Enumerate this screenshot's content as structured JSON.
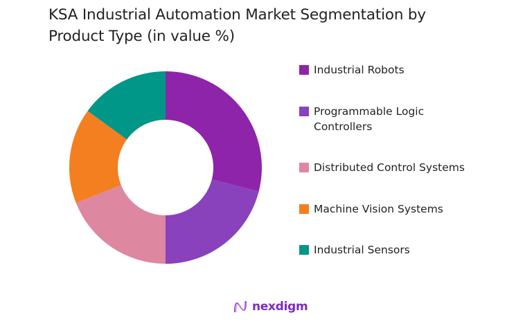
{
  "title": "KSA Industrial Automation Market Segmentation by Product Type (in value %)",
  "chart_data": {
    "type": "pie",
    "subtype": "donut",
    "title": "KSA Industrial Automation Market Segmentation by Product Type (in value %)",
    "categories": [
      "Industrial Robots",
      "Programmable Logic Controllers",
      "Distributed Control Systems",
      "Machine Vision Systems",
      "Industrial Sensors"
    ],
    "values": [
      29,
      21,
      19,
      16,
      15
    ],
    "colors": [
      "#8e24aa",
      "#8a41bc",
      "#de87a1",
      "#f47f20",
      "#009688"
    ],
    "legend_position": "right",
    "start_angle_deg": 0,
    "direction": "clockwise"
  },
  "legend": {
    "items": [
      {
        "label": "Industrial Robots",
        "color": "#8e24aa"
      },
      {
        "label": "Programmable Logic Controllers",
        "color": "#8a41bc"
      },
      {
        "label": "Distributed Control Systems",
        "color": "#de87a1"
      },
      {
        "label": "Machine Vision Systems",
        "color": "#f47f20"
      },
      {
        "label": "Industrial Sensors",
        "color": "#009688"
      }
    ]
  },
  "branding": {
    "logo_text": "nexdigm"
  }
}
